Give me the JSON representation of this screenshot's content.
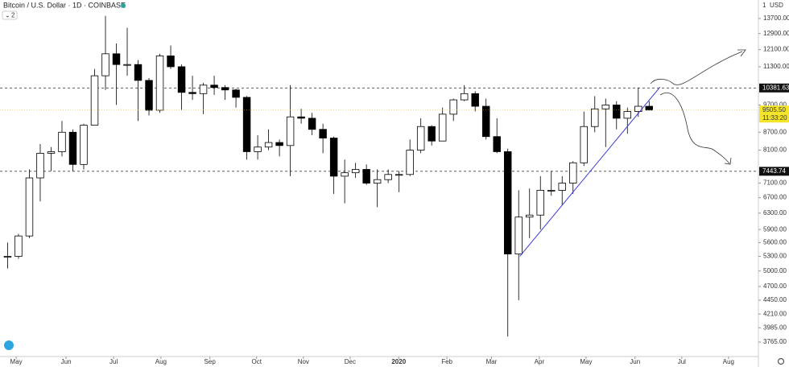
{
  "chart_data": {
    "type": "candlestick",
    "title": "Bitcoin / U.S. Dollar · 1D · COINBASE",
    "indicator_count": "2",
    "unit": "USD",
    "unit_multiplier": "1",
    "log_scale": true,
    "grid": false,
    "up_color": "#ffffff",
    "down_color": "#000000",
    "open": [
      5300,
      5300,
      5750,
      7250,
      8000,
      8050,
      8700,
      7650,
      8950,
      10900,
      11900,
      11400,
      11400,
      10700,
      9500,
      11800,
      11300,
      10200,
      10150,
      10500,
      10400,
      10300,
      10000,
      8050,
      8200,
      8350,
      8250,
      9250,
      9200,
      8800,
      8500,
      7300,
      7400,
      7500,
      7100,
      7200,
      7350,
      7350,
      8100,
      8900,
      8400,
      9350,
      9900,
      10150,
      9650,
      8550,
      8050,
      5350,
      6200,
      6250,
      6900,
      6900,
      7100,
      7700,
      8900,
      9550,
      9700,
      9200,
      9450,
      9650
    ],
    "high": [
      5600,
      5800,
      7500,
      8300,
      8200,
      9100,
      8800,
      9000,
      11200,
      13850,
      12400,
      13200,
      11600,
      10800,
      11900,
      12300,
      11400,
      10900,
      10600,
      10900,
      10500,
      10350,
      10050,
      8600,
      8800,
      8450,
      10500,
      9550,
      9400,
      9000,
      8550,
      7800,
      7700,
      7650,
      7500,
      7500,
      7450,
      8450,
      9200,
      8950,
      9600,
      9950,
      10500,
      10250,
      9950,
      9200,
      8150,
      6900,
      6950,
      7300,
      7450,
      7300,
      7750,
      9450,
      10050,
      9950,
      9850,
      9600,
      10400,
      9850
    ],
    "low": [
      5050,
      5250,
      5700,
      6600,
      7450,
      7900,
      7450,
      7500,
      8950,
      10300,
      9700,
      10900,
      9100,
      9300,
      9400,
      11200,
      9500,
      9900,
      9350,
      10100,
      9900,
      9600,
      7800,
      7800,
      8100,
      7900,
      7300,
      9000,
      8600,
      8000,
      6800,
      6550,
      7250,
      7050,
      6450,
      7100,
      6850,
      7300,
      8000,
      8250,
      8400,
      9100,
      9850,
      9450,
      8450,
      8000,
      3850,
      4450,
      5700,
      5900,
      6750,
      6500,
      6800,
      7600,
      8700,
      8200,
      8800,
      8650,
      9250,
      9500
    ],
    "close": [
      5300,
      5750,
      7250,
      8000,
      8050,
      8700,
      7650,
      8950,
      10900,
      11900,
      11400,
      11400,
      10700,
      9500,
      11800,
      11300,
      10200,
      10150,
      10500,
      10400,
      10300,
      10000,
      8050,
      8200,
      8350,
      8250,
      9250,
      9200,
      8800,
      8500,
      7300,
      7400,
      7500,
      7100,
      7200,
      7350,
      7350,
      8100,
      8900,
      8400,
      9350,
      9900,
      10150,
      9650,
      8550,
      8050,
      5350,
      6200,
      6250,
      6900,
      6900,
      7100,
      7700,
      8900,
      9550,
      9700,
      9200,
      9450,
      9650,
      9505.5
    ],
    "xlim": [
      -0.7,
      68.9
    ],
    "ylim": [
      3553,
      14750
    ],
    "xticks": [
      {
        "value": 0.79,
        "label": "May"
      },
      {
        "value": 5.38,
        "label": "Jun"
      },
      {
        "value": 9.75,
        "label": "Jul"
      },
      {
        "value": 14.1,
        "label": "Aug"
      },
      {
        "value": 18.6,
        "label": "Sep"
      },
      {
        "value": 22.9,
        "label": "Oct"
      },
      {
        "value": 27.2,
        "label": "Nov"
      },
      {
        "value": 31.5,
        "label": "Dec"
      },
      {
        "value": 35.97,
        "label": "2020"
      },
      {
        "value": 40.4,
        "label": "Feb"
      },
      {
        "value": 44.5,
        "label": "Mar"
      },
      {
        "value": 48.9,
        "label": "Apr"
      },
      {
        "value": 53.2,
        "label": "May"
      },
      {
        "value": 57.7,
        "label": "Jun"
      },
      {
        "value": 62,
        "label": "Jul"
      },
      {
        "value": 66.3,
        "label": "Aug"
      }
    ],
    "yticks": [
      {
        "value": 13700,
        "label": "13700.00"
      },
      {
        "value": 12900,
        "label": "12900.00"
      },
      {
        "value": 12100,
        "label": "12100.00"
      },
      {
        "value": 11300,
        "label": "11300.00"
      },
      {
        "value": 9700,
        "label": "9700.00"
      },
      {
        "value": 8700,
        "label": "8700.00"
      },
      {
        "value": 8100,
        "label": "8100.00"
      },
      {
        "value": 7100,
        "label": "7100.00"
      },
      {
        "value": 6700,
        "label": "6700.00"
      },
      {
        "value": 6300,
        "label": "6300.00"
      },
      {
        "value": 5900,
        "label": "5900.00"
      },
      {
        "value": 5600,
        "label": "5600.00"
      },
      {
        "value": 5300,
        "label": "5300.00"
      },
      {
        "value": 5000,
        "label": "5000.00"
      },
      {
        "value": 4700,
        "label": "4700.00"
      },
      {
        "value": 4450,
        "label": "4450.00"
      },
      {
        "value": 4210,
        "label": "4210.00"
      },
      {
        "value": 3985,
        "label": "3985.00"
      },
      {
        "value": 3765,
        "label": "3765.00"
      }
    ],
    "levels": [
      10381.63,
      7443.74
    ],
    "last_price": {
      "value": 9505.5,
      "label": "9505.50"
    },
    "countdown": "11:33:20",
    "trendline": {
      "x": [
        47.1,
        60
      ],
      "y": [
        5300,
        10420
      ],
      "color": "#3b3bd6"
    }
  }
}
